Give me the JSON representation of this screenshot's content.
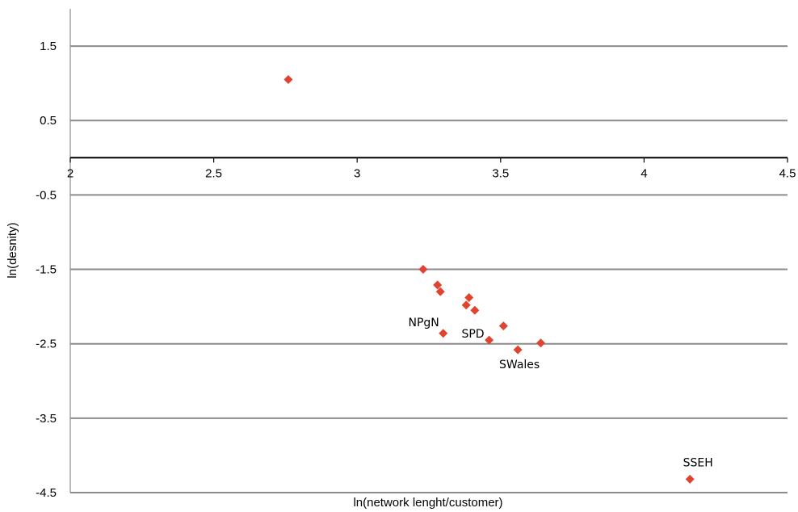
{
  "chart_data": {
    "type": "scatter",
    "title": "",
    "xlabel": "ln(network lenght/customer)",
    "ylabel": "ln(desnity)",
    "xlim": [
      2,
      4.5
    ],
    "ylim": [
      -4.5,
      2
    ],
    "x_ticks": [
      "2",
      "2.5",
      "3",
      "3.5",
      "4",
      "4.5"
    ],
    "y_ticks": [
      "1.5",
      "0.5",
      "-0.5",
      "-1.5",
      "-2.5",
      "-3.5",
      "-4.5"
    ],
    "grid": true,
    "legend": "none",
    "marker_color": "#e0432f",
    "marker": "diamond",
    "points": [
      {
        "x": 2.76,
        "y": 1.05
      },
      {
        "x": 3.23,
        "y": -1.5
      },
      {
        "x": 3.28,
        "y": -1.71
      },
      {
        "x": 3.29,
        "y": -1.8
      },
      {
        "x": 3.3,
        "y": -2.36,
        "label": "NPgN"
      },
      {
        "x": 3.38,
        "y": -1.98
      },
      {
        "x": 3.39,
        "y": -1.88
      },
      {
        "x": 3.41,
        "y": -2.05
      },
      {
        "x": 3.46,
        "y": -2.45,
        "label": "SPD"
      },
      {
        "x": 3.51,
        "y": -2.26
      },
      {
        "x": 3.56,
        "y": -2.58,
        "label": "SWales"
      },
      {
        "x": 3.64,
        "y": -2.49
      },
      {
        "x": 4.16,
        "y": -4.32,
        "label": "SSEH"
      }
    ]
  }
}
